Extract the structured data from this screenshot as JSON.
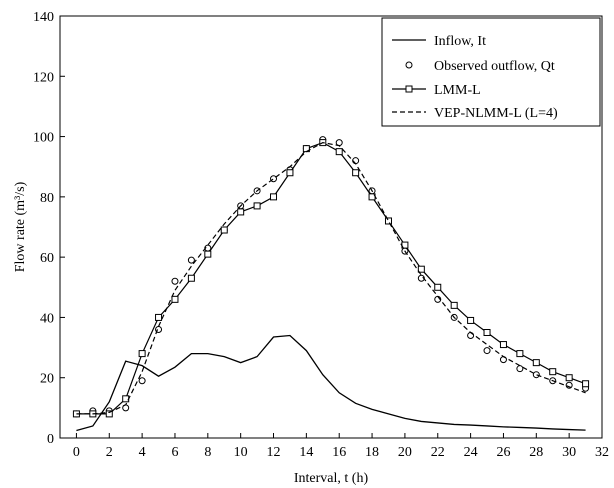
{
  "chart_data": {
    "type": "line",
    "xlabel": "Interval, t (h)",
    "ylabel": "Flow rate (m³/s)",
    "xlim": [
      -1,
      32
    ],
    "ylim": [
      0,
      140
    ],
    "xticks": [
      0,
      2,
      4,
      6,
      8,
      10,
      12,
      14,
      16,
      18,
      20,
      22,
      24,
      26,
      28,
      30,
      32
    ],
    "yticks": [
      0,
      20,
      40,
      60,
      80,
      100,
      120,
      140
    ],
    "legend_position": "top-right",
    "grid": false,
    "series": [
      {
        "name": "Inflow, It",
        "style": "solid",
        "x": [
          0,
          1,
          2,
          3,
          4,
          5,
          6,
          7,
          8,
          9,
          10,
          11,
          12,
          13,
          14,
          15,
          16,
          17,
          18,
          19,
          20,
          21,
          22,
          23,
          24,
          25,
          26,
          27,
          28,
          29,
          30,
          31
        ],
        "y": [
          2.5,
          4,
          12,
          25.5,
          24,
          20.5,
          23.5,
          28,
          28,
          27,
          25,
          27,
          33.5,
          34,
          29,
          21,
          15,
          11.5,
          9.5,
          8,
          6.5,
          5.5,
          5,
          4.5,
          4.3,
          4,
          3.7,
          3.5,
          3.3,
          3,
          2.8,
          2.6
        ]
      },
      {
        "name": "Observed outflow, Qt",
        "style": "circle",
        "x": [
          0,
          1,
          2,
          3,
          4,
          5,
          6,
          7,
          8,
          9,
          10,
          11,
          12,
          13,
          14,
          15,
          16,
          17,
          18,
          19,
          20,
          21,
          22,
          23,
          24,
          25,
          26,
          27,
          28,
          29,
          30,
          31
        ],
        "y": [
          8,
          9,
          9,
          10,
          19,
          36,
          52,
          59,
          63,
          69,
          77,
          82,
          86,
          89,
          96,
          99,
          98,
          92,
          82,
          72,
          62,
          53,
          46,
          40,
          34,
          29,
          26,
          23,
          21,
          19,
          17.5,
          16.5
        ]
      },
      {
        "name": "LMM-L",
        "style": "square",
        "x": [
          0,
          1,
          2,
          3,
          4,
          5,
          6,
          7,
          8,
          9,
          10,
          11,
          12,
          13,
          14,
          15,
          16,
          17,
          18,
          19,
          20,
          21,
          22,
          23,
          24,
          25,
          26,
          27,
          28,
          29,
          30,
          31
        ],
        "y": [
          8,
          8,
          8,
          13,
          28,
          40,
          46,
          53,
          61,
          69,
          75,
          77,
          80,
          88,
          96,
          98,
          95,
          88,
          80,
          72,
          64,
          56,
          50,
          44,
          39,
          35,
          31,
          28,
          25,
          22,
          20,
          18
        ]
      },
      {
        "name": "VEP-NLMM-L (L=4)",
        "style": "dashed",
        "x": [
          0,
          1,
          2,
          3,
          4,
          5,
          6,
          7,
          8,
          9,
          10,
          11,
          12,
          13,
          14,
          15,
          16,
          17,
          18,
          19,
          20,
          21,
          22,
          23,
          24,
          25,
          26,
          27,
          28,
          29,
          30,
          31
        ],
        "y": [
          8,
          8,
          8.5,
          11,
          22,
          37,
          49,
          57,
          64,
          71,
          77,
          82,
          86,
          90,
          95,
          98,
          97,
          91,
          82,
          72,
          62,
          54,
          47,
          40,
          35,
          31,
          27,
          24,
          21,
          19,
          17,
          15
        ]
      }
    ]
  }
}
